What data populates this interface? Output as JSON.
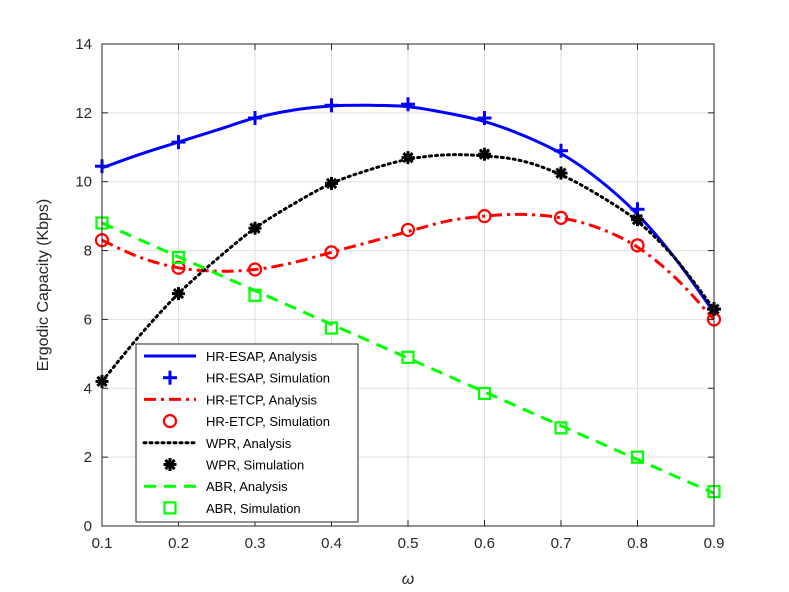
{
  "chart_data": {
    "type": "line",
    "title": "",
    "xlabel": "ω",
    "ylabel": "Ergodic Capacity (Kbps)",
    "xlim": [
      0.1,
      0.9
    ],
    "ylim": [
      0,
      14
    ],
    "xticks": [
      "0.1",
      "0.2",
      "0.3",
      "0.4",
      "0.5",
      "0.6",
      "0.7",
      "0.8",
      "0.9"
    ],
    "yticks": [
      "0",
      "2",
      "4",
      "6",
      "8",
      "10",
      "12",
      "14"
    ],
    "grid": true,
    "legend_position": "bottom-left",
    "x": [
      0.1,
      0.2,
      0.3,
      0.4,
      0.5,
      0.6,
      0.7,
      0.8,
      0.9
    ],
    "series": [
      {
        "name": "HR-ESAP, Analysis",
        "style": "solid",
        "color": "#0000FF",
        "x": [
          0.1,
          0.15,
          0.2,
          0.25,
          0.3,
          0.35,
          0.4,
          0.45,
          0.5,
          0.55,
          0.6,
          0.65,
          0.7,
          0.75,
          0.8,
          0.85,
          0.9
        ],
        "values": [
          10.4,
          10.8,
          11.15,
          11.5,
          11.85,
          12.08,
          12.2,
          12.22,
          12.18,
          12.0,
          11.75,
          11.35,
          10.82,
          10.05,
          9.05,
          7.75,
          6.2
        ]
      },
      {
        "name": "HR-ESAP, Simulation",
        "marker": "plus",
        "color": "#0000FF",
        "values": [
          10.45,
          11.15,
          11.85,
          12.22,
          12.25,
          11.85,
          10.9,
          9.2,
          6.3
        ]
      },
      {
        "name": "HR-ETCP, Analysis",
        "style": "dashdot",
        "color": "#FF0000",
        "x": [
          0.1,
          0.15,
          0.2,
          0.25,
          0.3,
          0.35,
          0.4,
          0.45,
          0.5,
          0.55,
          0.6,
          0.65,
          0.7,
          0.75,
          0.8,
          0.85,
          0.9
        ],
        "values": [
          8.3,
          7.8,
          7.5,
          7.4,
          7.45,
          7.65,
          7.95,
          8.25,
          8.55,
          8.85,
          9.0,
          9.05,
          8.95,
          8.65,
          8.1,
          7.2,
          6.0
        ]
      },
      {
        "name": "HR-ETCP, Simulation",
        "marker": "circle",
        "color": "#FF0000",
        "values": [
          8.3,
          7.5,
          7.45,
          7.95,
          8.6,
          9.0,
          8.95,
          8.15,
          6.0
        ]
      },
      {
        "name": "WPR, Analysis",
        "style": "dotted",
        "color": "#000000",
        "x": [
          0.1,
          0.15,
          0.2,
          0.25,
          0.3,
          0.35,
          0.4,
          0.45,
          0.5,
          0.55,
          0.6,
          0.65,
          0.7,
          0.75,
          0.8,
          0.85,
          0.9
        ],
        "values": [
          4.2,
          5.55,
          6.75,
          7.75,
          8.65,
          9.35,
          9.95,
          10.35,
          10.65,
          10.78,
          10.75,
          10.6,
          10.2,
          9.6,
          8.85,
          7.75,
          6.3
        ]
      },
      {
        "name": "WPR, Simulation",
        "marker": "asterisk",
        "color": "#000000",
        "values": [
          4.2,
          6.75,
          8.65,
          9.95,
          10.7,
          10.8,
          10.25,
          8.9,
          6.3
        ]
      },
      {
        "name": "ABR, Analysis",
        "style": "dashed",
        "color": "#00FF00",
        "x": [
          0.1,
          0.9
        ],
        "values": [
          8.8,
          0.95
        ]
      },
      {
        "name": "ABR, Simulation",
        "marker": "square",
        "color": "#00FF00",
        "values": [
          8.8,
          7.8,
          6.7,
          5.75,
          4.9,
          3.85,
          2.85,
          2.0,
          1.0
        ]
      }
    ]
  }
}
